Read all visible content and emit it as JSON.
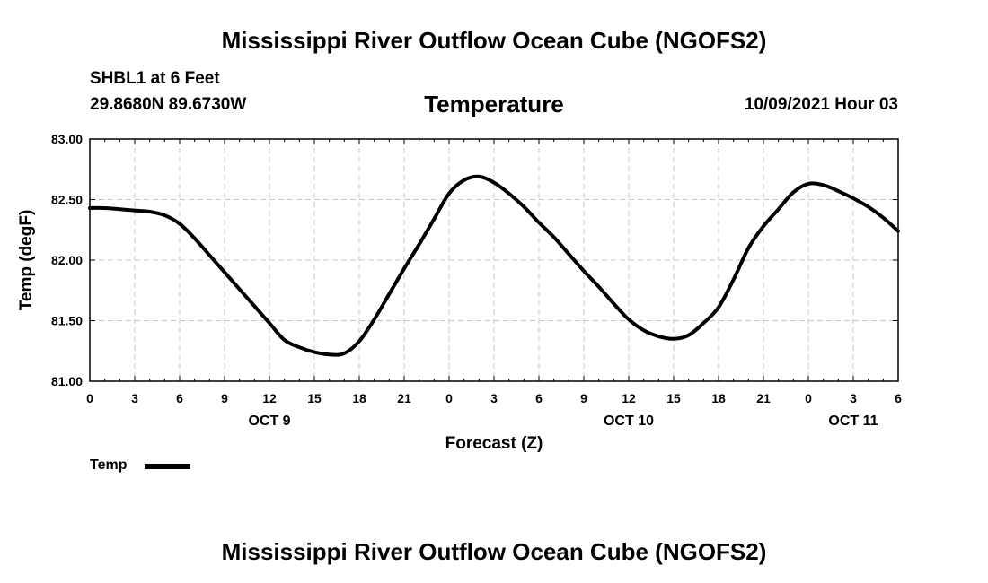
{
  "header": {
    "title": "Mississippi River Outflow Ocean Cube (NGOFS2)",
    "station": "SHBL1 at 6 Feet",
    "coordinates": "29.8680N  89.6730W",
    "subtitle": "Temperature",
    "datetime": "10/09/2021 Hour 03"
  },
  "footer": {
    "title": "Mississippi River Outflow Ocean Cube (NGOFS2)"
  },
  "legend": {
    "label": "Temp"
  },
  "chart_data": {
    "type": "line",
    "title": "Temperature",
    "xlabel": "Forecast (Z)",
    "ylabel": "Temp (degF)",
    "xlim": [
      0,
      54
    ],
    "ylim": [
      81.0,
      83.0
    ],
    "grid": true,
    "x_ticks": [
      {
        "value": 0,
        "label": "0"
      },
      {
        "value": 3,
        "label": "3"
      },
      {
        "value": 6,
        "label": "6"
      },
      {
        "value": 9,
        "label": "9"
      },
      {
        "value": 12,
        "label": "12"
      },
      {
        "value": 15,
        "label": "15"
      },
      {
        "value": 18,
        "label": "18"
      },
      {
        "value": 21,
        "label": "21"
      },
      {
        "value": 24,
        "label": "0"
      },
      {
        "value": 27,
        "label": "3"
      },
      {
        "value": 30,
        "label": "6"
      },
      {
        "value": 33,
        "label": "9"
      },
      {
        "value": 36,
        "label": "12"
      },
      {
        "value": 39,
        "label": "15"
      },
      {
        "value": 42,
        "label": "18"
      },
      {
        "value": 45,
        "label": "21"
      },
      {
        "value": 48,
        "label": "0"
      },
      {
        "value": 51,
        "label": "3"
      },
      {
        "value": 54,
        "label": "6"
      }
    ],
    "y_ticks": [
      {
        "value": 81.0,
        "label": "81.00"
      },
      {
        "value": 81.5,
        "label": "81.50"
      },
      {
        "value": 82.0,
        "label": "82.00"
      },
      {
        "value": 82.5,
        "label": "82.50"
      },
      {
        "value": 83.0,
        "label": "83.00"
      }
    ],
    "day_labels": [
      {
        "value": 12,
        "label": "OCT 9"
      },
      {
        "value": 36,
        "label": "OCT 10"
      },
      {
        "value": 51,
        "label": "OCT 11"
      }
    ],
    "series": [
      {
        "name": "Temp",
        "color": "#000000",
        "x": [
          0,
          1,
          2,
          3,
          4,
          5,
          6,
          7,
          8,
          9,
          10,
          11,
          12,
          13,
          14,
          15,
          16,
          17,
          18,
          19,
          20,
          21,
          22,
          23,
          24,
          25,
          26,
          27,
          28,
          29,
          30,
          31,
          32,
          33,
          34,
          35,
          36,
          37,
          38,
          39,
          40,
          41,
          42,
          43,
          44,
          45,
          46,
          47,
          48,
          49,
          50,
          51,
          52,
          53,
          54
        ],
        "values": [
          82.43,
          82.43,
          82.42,
          82.41,
          82.4,
          82.37,
          82.3,
          82.18,
          82.04,
          81.9,
          81.76,
          81.62,
          81.48,
          81.34,
          81.28,
          81.24,
          81.22,
          81.23,
          81.33,
          81.51,
          81.72,
          81.93,
          82.13,
          82.34,
          82.55,
          82.66,
          82.69,
          82.64,
          82.55,
          82.44,
          82.31,
          82.19,
          82.05,
          81.91,
          81.78,
          81.64,
          81.51,
          81.42,
          81.37,
          81.35,
          81.38,
          81.48,
          81.61,
          81.84,
          82.1,
          82.28,
          82.42,
          82.56,
          82.63,
          82.62,
          82.57,
          82.51,
          82.44,
          82.35,
          82.24
        ]
      }
    ]
  }
}
